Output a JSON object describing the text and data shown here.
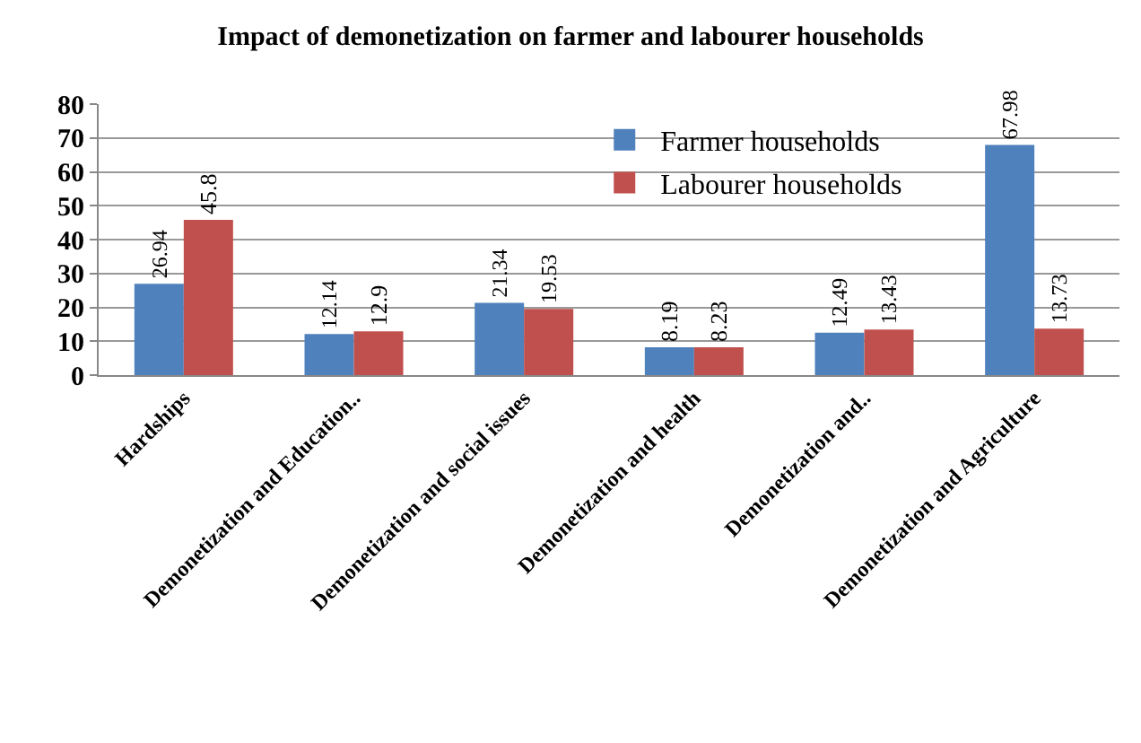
{
  "chart_data": {
    "type": "bar",
    "title": "Impact of demonetization on farmer and labourer households",
    "categories": [
      "Hardships",
      "Demonetization and Education..",
      "Demonetization and social issues",
      "Demonetization and health",
      "Demonetization and..",
      "Demonetization and Agriculture"
    ],
    "series": [
      {
        "name": "Farmer households",
        "color": "#4f81bd",
        "values": [
          26.94,
          12.14,
          21.34,
          8.19,
          12.49,
          67.98
        ]
      },
      {
        "name": "Labourer households",
        "color": "#c0504d",
        "values": [
          45.8,
          12.9,
          19.53,
          8.23,
          13.43,
          13.73
        ]
      }
    ],
    "ylim": [
      0,
      80
    ],
    "yticks": [
      0,
      10,
      20,
      30,
      40,
      50,
      60,
      70,
      80
    ],
    "grid": "y",
    "legend": "top right",
    "data_labels": true
  }
}
